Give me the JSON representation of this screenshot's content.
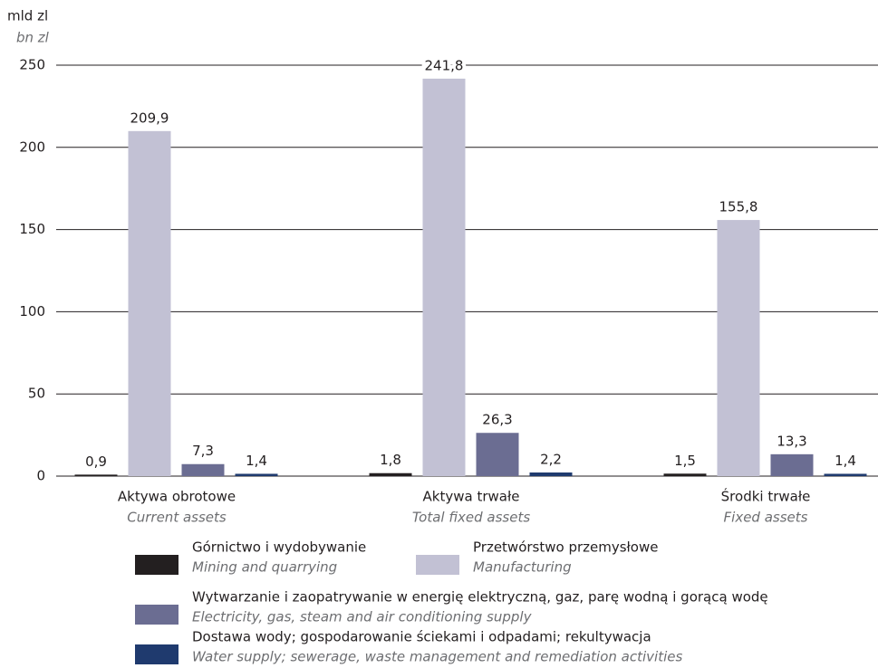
{
  "chart_data": {
    "type": "bar",
    "y_label": "mld zl",
    "y_label_en": "bn zl",
    "categories": [
      "Aktywa obrotowe",
      "Aktywa trwałe",
      "Środki trwałe"
    ],
    "categories_en": [
      "Current assets",
      "Total fixed assets",
      "Fixed assets"
    ],
    "series": [
      {
        "name": "Górnictwo i wydobywanie",
        "name_en": "Mining and quarrying",
        "color": "#231f20",
        "values": [
          0.9,
          1.8,
          1.5
        ],
        "value_labels": [
          "0,9",
          "1,8",
          "1,5"
        ]
      },
      {
        "name": "Przetwórstwo przemysłowe",
        "name_en": "Manufacturing",
        "color": "#c2c1d4",
        "values": [
          209.9,
          241.8,
          155.8
        ],
        "value_labels": [
          "209,9",
          "241,8",
          "155,8"
        ]
      },
      {
        "name": "Wytwarzanie i zaopatrywanie w energię elektryczną, gaz, parę wodną i gorącą wodę",
        "name_en": "Electricity, gas, steam and air conditioning supply",
        "color": "#6b6d92",
        "values": [
          7.3,
          26.3,
          13.3
        ],
        "value_labels": [
          "7,3",
          "26,3",
          "13,3"
        ]
      },
      {
        "name": "Dostawa wody; gospodarowanie ściekami i odpadami; rekultywacja",
        "name_en": "Water supply; sewerage, waste management and remediation activities",
        "color": "#1f3a6e",
        "values": [
          1.4,
          2.2,
          1.4
        ],
        "value_labels": [
          "1,4",
          "2,2",
          "1,4"
        ]
      }
    ],
    "ylim": [
      0,
      250
    ],
    "yticks": [
      0,
      50,
      100,
      150,
      200,
      250
    ],
    "grid": true
  }
}
